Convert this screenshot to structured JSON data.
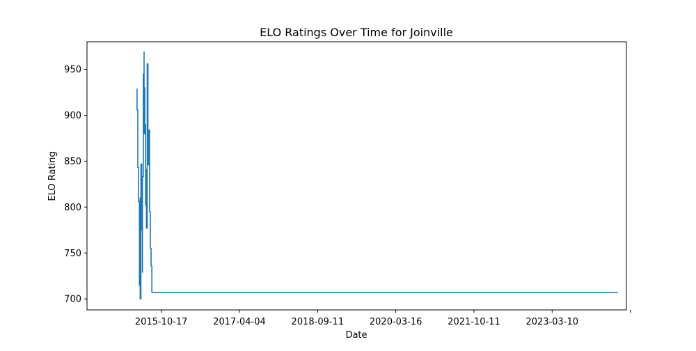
{
  "chart_data": {
    "type": "line",
    "title": "ELO Ratings Over Time for Joinville",
    "xlabel": "Date",
    "ylabel": "ELO Rating",
    "x_tick_labels": [
      "2015-10-17",
      "2017-04-04",
      "2018-09-11",
      "2020-03-16",
      "2021-10-11",
      "2023-03-10",
      ""
    ],
    "y_ticks": [
      700,
      750,
      800,
      850,
      900,
      950
    ],
    "grid": false,
    "legend": "none",
    "x_range": [
      -0.95,
      5.95
    ],
    "y_range": [
      688,
      980
    ],
    "series": [
      {
        "name": "Joinville",
        "color": "#1f77b4",
        "x": [
          -0.31,
          -0.31,
          -0.3,
          -0.3,
          -0.29,
          -0.29,
          -0.28,
          -0.28,
          -0.27,
          -0.27,
          -0.26,
          -0.26,
          -0.25,
          -0.25,
          -0.24,
          -0.24,
          -0.23,
          -0.23,
          -0.22,
          -0.22,
          -0.21,
          -0.21,
          -0.2,
          -0.2,
          -0.19,
          -0.19,
          -0.18,
          -0.18,
          -0.17,
          -0.17,
          -0.16,
          -0.16,
          -0.15,
          -0.15,
          -0.14,
          -0.14,
          -0.13,
          -0.13,
          -0.12,
          -0.12,
          -0.11,
          -0.11,
          -0.1,
          -0.1,
          -0.09,
          -0.09,
          -0.08,
          -0.08,
          -0.07,
          -0.07,
          -0.06,
          -0.06,
          -0.05,
          -0.05,
          -0.04,
          -0.04,
          -0.03,
          -0.03,
          -0.02,
          -0.02,
          -0.01,
          -0.01,
          0.0,
          0.0,
          0.01,
          0.01,
          0.02,
          0.02,
          0.03,
          0.03,
          0.04,
          0.04,
          0.05,
          0.05,
          0.06,
          0.06,
          0.07,
          0.07,
          0.08,
          0.08,
          0.09,
          0.09,
          5.84
        ],
        "y": [
          929,
          906,
          906,
          843,
          843,
          806,
          758,
          715,
          700,
          810,
          700,
          847,
          775,
          790,
          729,
          833,
          945,
          900,
          969,
          880,
          930,
          890,
          888,
          802,
          841,
          777,
          841,
          956,
          895,
          846,
          884,
          846,
          884,
          795,
          755,
          755,
          736,
          736,
          707,
          707,
          707,
          707,
          707,
          707,
          707,
          707,
          707,
          707,
          707,
          707,
          707,
          707,
          707,
          707,
          707,
          707,
          707,
          707,
          707,
          707,
          707,
          707,
          707,
          707,
          707,
          707,
          707,
          707,
          707,
          707,
          707,
          707,
          707,
          707,
          707,
          707,
          707,
          707,
          707,
          707,
          707,
          707,
          707
        ]
      }
    ]
  }
}
